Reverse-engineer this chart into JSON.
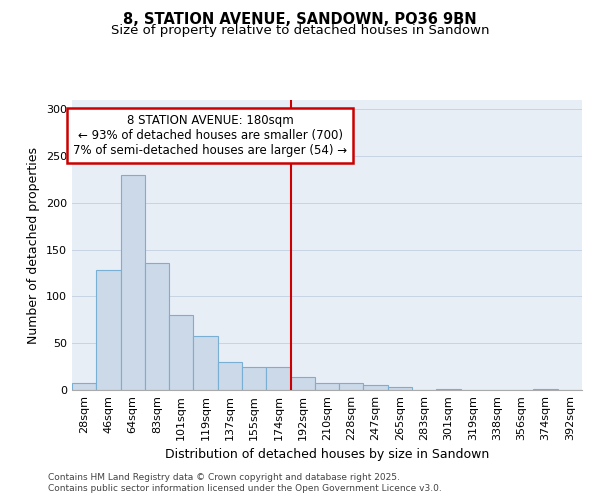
{
  "title": "8, STATION AVENUE, SANDOWN, PO36 9BN",
  "subtitle": "Size of property relative to detached houses in Sandown",
  "xlabel": "Distribution of detached houses by size in Sandown",
  "ylabel": "Number of detached properties",
  "categories": [
    "28sqm",
    "46sqm",
    "64sqm",
    "83sqm",
    "101sqm",
    "119sqm",
    "137sqm",
    "155sqm",
    "174sqm",
    "192sqm",
    "210sqm",
    "228sqm",
    "247sqm",
    "265sqm",
    "283sqm",
    "301sqm",
    "319sqm",
    "338sqm",
    "356sqm",
    "374sqm",
    "392sqm"
  ],
  "values": [
    7,
    128,
    230,
    136,
    80,
    58,
    30,
    25,
    25,
    14,
    7,
    7,
    5,
    3,
    0,
    1,
    0,
    0,
    0,
    1,
    0
  ],
  "bar_color": "#ccd9e8",
  "bar_edge_color": "#7aafd4",
  "annotation_text_line1": "8 STATION AVENUE: 180sqm",
  "annotation_text_line2": "← 93% of detached houses are smaller (700)",
  "annotation_text_line3": "7% of semi-detached houses are larger (54) →",
  "annotation_box_facecolor": "#ffffff",
  "annotation_box_edgecolor": "#cc0000",
  "vline_color": "#cc0000",
  "vline_x_index": 8.5,
  "ylim": [
    0,
    310
  ],
  "yticks": [
    0,
    50,
    100,
    150,
    200,
    250,
    300
  ],
  "grid_color": "#c8d4e4",
  "plot_bg_color": "#e8eef6",
  "fig_bg_color": "#ffffff",
  "title_fontsize": 10.5,
  "subtitle_fontsize": 9.5,
  "axis_label_fontsize": 9,
  "tick_fontsize": 8,
  "annotation_fontsize": 8.5,
  "footer_fontsize": 6.5,
  "footer_line1": "Contains HM Land Registry data © Crown copyright and database right 2025.",
  "footer_line2": "Contains public sector information licensed under the Open Government Licence v3.0."
}
